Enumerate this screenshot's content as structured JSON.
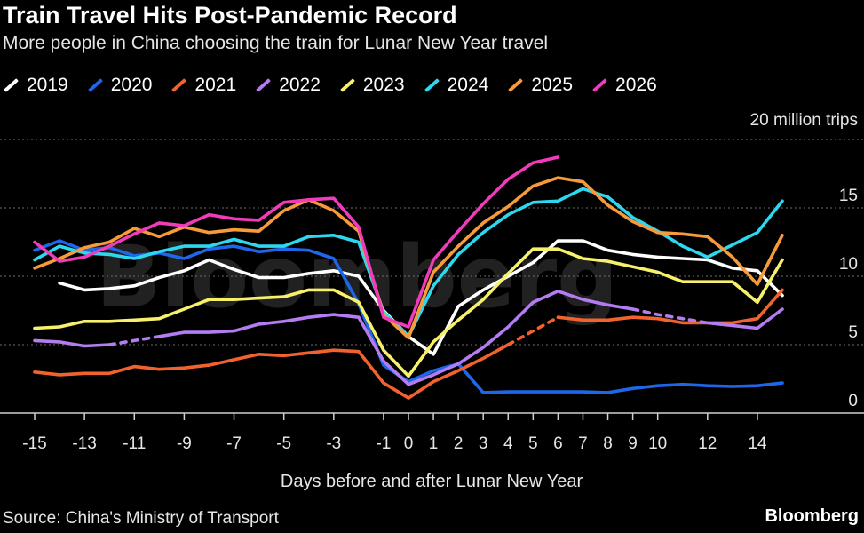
{
  "header": {
    "title": "Train Travel Hits Post-Pandemic Record",
    "subtitle": "More people in China choosing the train for Lunar New Year travel"
  },
  "footer": {
    "source": "Source: China's Ministry of Transport",
    "brand": "Bloomberg"
  },
  "watermark": "Bloomberg",
  "chart_data": {
    "type": "line",
    "title": "Train Travel Hits Post-Pandemic Record",
    "subtitle": "More people in China choosing the train for Lunar New Year travel",
    "xlabel": "Days before and after Lunar New Year",
    "ylabel": "",
    "y_unit_label": "20 million trips",
    "xlim": [
      -15,
      15
    ],
    "ylim": [
      0,
      20
    ],
    "x_ticks": [
      -15,
      -13,
      -11,
      -9,
      -7,
      -5,
      -3,
      -1,
      0,
      1,
      2,
      3,
      4,
      5,
      6,
      7,
      8,
      9,
      10,
      12,
      14
    ],
    "y_ticks": [
      0,
      5,
      10,
      15
    ],
    "grid": true,
    "legend_position": "top",
    "series": [
      {
        "name": "2019",
        "color": "#ffffff",
        "points": [
          [
            -14,
            9.5
          ],
          [
            -13,
            9.0
          ],
          [
            -12,
            9.1
          ],
          [
            -11,
            9.3
          ],
          [
            -10,
            9.9
          ],
          [
            -9,
            10.4
          ],
          [
            -8,
            11.2
          ],
          [
            -7,
            10.5
          ],
          [
            -6,
            9.9
          ],
          [
            -5,
            9.9
          ],
          [
            -4,
            10.2
          ],
          [
            -3,
            10.4
          ],
          [
            -2,
            10.0
          ],
          [
            -1,
            7.5
          ],
          [
            0,
            5.6
          ],
          [
            1,
            4.3
          ],
          [
            2,
            7.8
          ],
          [
            3,
            9.0
          ],
          [
            4,
            10.0
          ],
          [
            5,
            11.0
          ],
          [
            6,
            12.6
          ],
          [
            7,
            12.6
          ],
          [
            8,
            11.9
          ],
          [
            9,
            11.6
          ],
          [
            10,
            11.4
          ],
          [
            11,
            11.3
          ],
          [
            12,
            11.2
          ],
          [
            13,
            10.6
          ],
          [
            14,
            10.4
          ],
          [
            15,
            8.6
          ]
        ]
      },
      {
        "name": "2020",
        "color": "#1f66e8",
        "points": [
          [
            -15,
            11.9
          ],
          [
            -14,
            12.6
          ],
          [
            -13,
            11.9
          ],
          [
            -12,
            12.1
          ],
          [
            -11,
            11.5
          ],
          [
            -10,
            11.7
          ],
          [
            -9,
            11.3
          ],
          [
            -8,
            12.0
          ],
          [
            -7,
            12.2
          ],
          [
            -6,
            11.8
          ],
          [
            -5,
            12.0
          ],
          [
            -4,
            11.9
          ],
          [
            -3,
            11.3
          ],
          [
            -2,
            8.0
          ],
          [
            -1,
            3.5
          ],
          [
            0,
            2.3
          ],
          [
            1,
            3.1
          ],
          [
            2,
            3.6
          ],
          [
            3,
            1.5
          ],
          [
            4,
            1.55
          ],
          [
            5,
            1.55
          ],
          [
            6,
            1.55
          ],
          [
            7,
            1.55
          ],
          [
            8,
            1.5
          ],
          [
            9,
            1.8
          ],
          [
            10,
            2.0
          ],
          [
            11,
            2.1
          ],
          [
            12,
            2.0
          ],
          [
            13,
            1.95
          ],
          [
            14,
            2.0
          ],
          [
            15,
            2.2
          ]
        ]
      },
      {
        "name": "2021",
        "color": "#f2622f",
        "points": [
          [
            -15,
            3.0
          ],
          [
            -14,
            2.8
          ],
          [
            -13,
            2.9
          ],
          [
            -12,
            2.9
          ],
          [
            -11,
            3.4
          ],
          [
            -10,
            3.2
          ],
          [
            -9,
            3.3
          ],
          [
            -8,
            3.5
          ],
          [
            -7,
            3.9
          ],
          [
            -6,
            4.3
          ],
          [
            -5,
            4.2
          ],
          [
            -4,
            4.4
          ],
          [
            -3,
            4.6
          ],
          [
            -2,
            4.5
          ],
          [
            -1,
            2.2
          ],
          [
            0,
            1.1
          ],
          [
            1,
            2.3
          ],
          [
            2,
            3.1
          ],
          [
            3,
            4.0
          ],
          [
            4,
            5.0
          ],
          [
            5,
            6.0
          ],
          [
            6,
            7.0
          ],
          [
            7,
            6.8
          ],
          [
            8,
            6.8
          ],
          [
            9,
            7.0
          ],
          [
            10,
            6.9
          ],
          [
            11,
            6.6
          ],
          [
            12,
            6.6
          ],
          [
            13,
            6.6
          ],
          [
            14,
            6.9
          ],
          [
            15,
            9.0
          ]
        ],
        "dashed_segments": [
          [
            4,
            6
          ]
        ]
      },
      {
        "name": "2022",
        "color": "#b37cf0",
        "points": [
          [
            -15,
            5.3
          ],
          [
            -14,
            5.2
          ],
          [
            -13,
            4.9
          ],
          [
            -12,
            5.0
          ],
          [
            -11,
            5.3
          ],
          [
            -10,
            5.6
          ],
          [
            -9,
            5.9
          ],
          [
            -8,
            5.9
          ],
          [
            -7,
            6.0
          ],
          [
            -6,
            6.5
          ],
          [
            -5,
            6.7
          ],
          [
            -4,
            7.0
          ],
          [
            -3,
            7.2
          ],
          [
            -2,
            7.0
          ],
          [
            -1,
            3.8
          ],
          [
            0,
            2.1
          ],
          [
            1,
            2.8
          ],
          [
            2,
            3.6
          ],
          [
            3,
            4.8
          ],
          [
            4,
            6.3
          ],
          [
            5,
            8.1
          ],
          [
            6,
            8.9
          ],
          [
            7,
            8.3
          ],
          [
            8,
            7.9
          ],
          [
            9,
            7.6
          ],
          [
            10,
            7.2
          ],
          [
            11,
            6.9
          ],
          [
            12,
            6.6
          ],
          [
            13,
            6.4
          ],
          [
            14,
            6.2
          ],
          [
            15,
            7.6
          ]
        ],
        "dashed_segments": [
          [
            -12,
            -10
          ],
          [
            9,
            12
          ]
        ]
      },
      {
        "name": "2023",
        "color": "#f7f06b",
        "points": [
          [
            -15,
            6.2
          ],
          [
            -14,
            6.3
          ],
          [
            -13,
            6.7
          ],
          [
            -12,
            6.7
          ],
          [
            -11,
            6.8
          ],
          [
            -10,
            6.9
          ],
          [
            -9,
            7.6
          ],
          [
            -8,
            8.3
          ],
          [
            -7,
            8.3
          ],
          [
            -6,
            8.4
          ],
          [
            -5,
            8.5
          ],
          [
            -4,
            9.0
          ],
          [
            -3,
            9.0
          ],
          [
            -2,
            8.1
          ],
          [
            -1,
            4.6
          ],
          [
            0,
            2.7
          ],
          [
            1,
            5.2
          ],
          [
            2,
            6.8
          ],
          [
            3,
            8.3
          ],
          [
            4,
            10.2
          ],
          [
            5,
            12.0
          ],
          [
            6,
            12.0
          ],
          [
            7,
            11.3
          ],
          [
            8,
            11.1
          ],
          [
            9,
            10.7
          ],
          [
            10,
            10.3
          ],
          [
            11,
            9.6
          ],
          [
            12,
            9.6
          ],
          [
            13,
            9.6
          ],
          [
            14,
            8.1
          ],
          [
            15,
            11.2
          ]
        ]
      },
      {
        "name": "2024",
        "color": "#2dd8ef",
        "points": [
          [
            -15,
            11.2
          ],
          [
            -14,
            12.2
          ],
          [
            -13,
            11.7
          ],
          [
            -12,
            11.6
          ],
          [
            -11,
            11.3
          ],
          [
            -10,
            11.8
          ],
          [
            -9,
            12.2
          ],
          [
            -8,
            12.2
          ],
          [
            -7,
            12.7
          ],
          [
            -6,
            12.2
          ],
          [
            -5,
            12.2
          ],
          [
            -4,
            12.9
          ],
          [
            -3,
            13.0
          ],
          [
            -2,
            12.5
          ],
          [
            -1,
            7.4
          ],
          [
            0,
            5.6
          ],
          [
            1,
            9.3
          ],
          [
            2,
            11.6
          ],
          [
            3,
            13.2
          ],
          [
            4,
            14.5
          ],
          [
            5,
            15.4
          ],
          [
            6,
            15.5
          ],
          [
            7,
            16.4
          ],
          [
            8,
            15.8
          ],
          [
            9,
            14.3
          ],
          [
            10,
            13.3
          ],
          [
            11,
            12.2
          ],
          [
            12,
            11.4
          ],
          [
            13,
            12.3
          ],
          [
            14,
            13.2
          ],
          [
            15,
            15.5
          ]
        ]
      },
      {
        "name": "2025",
        "color": "#f79a3a",
        "points": [
          [
            -15,
            10.6
          ],
          [
            -14,
            11.3
          ],
          [
            -13,
            12.1
          ],
          [
            -12,
            12.5
          ],
          [
            -11,
            13.5
          ],
          [
            -10,
            12.9
          ],
          [
            -9,
            13.6
          ],
          [
            -8,
            13.2
          ],
          [
            -7,
            13.4
          ],
          [
            -6,
            13.3
          ],
          [
            -5,
            14.8
          ],
          [
            -4,
            15.6
          ],
          [
            -3,
            14.8
          ],
          [
            -2,
            13.3
          ],
          [
            -1,
            7.2
          ],
          [
            0,
            5.5
          ],
          [
            1,
            10.3
          ],
          [
            2,
            12.2
          ],
          [
            3,
            13.9
          ],
          [
            4,
            15.1
          ],
          [
            5,
            16.6
          ],
          [
            6,
            17.2
          ],
          [
            7,
            16.9
          ],
          [
            8,
            15.2
          ],
          [
            9,
            14.0
          ],
          [
            10,
            13.2
          ],
          [
            11,
            13.1
          ],
          [
            12,
            12.9
          ],
          [
            13,
            11.4
          ],
          [
            14,
            9.4
          ],
          [
            15,
            13.0
          ]
        ]
      },
      {
        "name": "2026",
        "color": "#f03cbb",
        "points": [
          [
            -15,
            12.5
          ],
          [
            -14,
            11.1
          ],
          [
            -13,
            11.4
          ],
          [
            -12,
            12.2
          ],
          [
            -11,
            13.1
          ],
          [
            -10,
            13.9
          ],
          [
            -9,
            13.7
          ],
          [
            -8,
            14.5
          ],
          [
            -7,
            14.2
          ],
          [
            -6,
            14.1
          ],
          [
            -5,
            15.4
          ],
          [
            -4,
            15.6
          ],
          [
            -3,
            15.7
          ],
          [
            -2,
            13.6
          ],
          [
            -1,
            7.0
          ],
          [
            0,
            6.3
          ],
          [
            1,
            11.2
          ],
          [
            2,
            13.3
          ],
          [
            3,
            15.3
          ],
          [
            4,
            17.1
          ],
          [
            5,
            18.3
          ],
          [
            6,
            18.7
          ]
        ]
      }
    ]
  }
}
